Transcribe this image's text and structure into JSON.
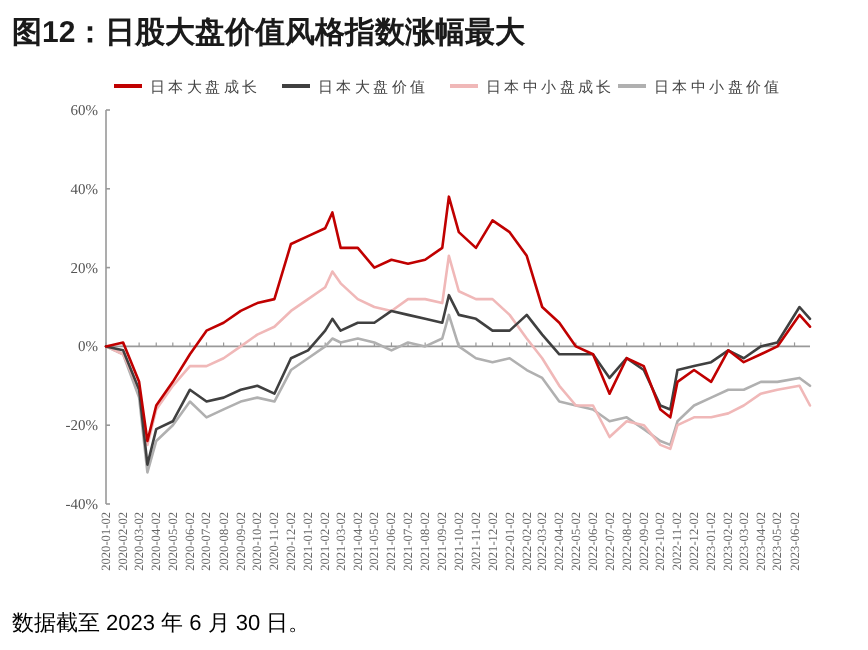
{
  "chart_data": {
    "type": "line",
    "title": "图12：日股大盘价值风格指数涨幅最大",
    "annotations": [
      "数据截至 2023 年 6 月 30 日。"
    ],
    "legend": "top",
    "x": [
      "2020-01-02",
      "2020-02-02",
      "2020-03-02",
      "2020-03-17",
      "2020-04-02",
      "2020-05-02",
      "2020-06-02",
      "2020-07-02",
      "2020-08-02",
      "2020-09-02",
      "2020-10-02",
      "2020-11-02",
      "2020-12-02",
      "2021-01-02",
      "2021-02-02",
      "2021-02-15",
      "2021-03-02",
      "2021-04-02",
      "2021-05-02",
      "2021-06-02",
      "2021-07-02",
      "2021-08-02",
      "2021-09-02",
      "2021-09-14",
      "2021-10-02",
      "2021-11-02",
      "2021-12-02",
      "2022-01-02",
      "2022-02-02",
      "2022-03-02",
      "2022-04-02",
      "2022-05-02",
      "2022-06-02",
      "2022-07-02",
      "2022-08-02",
      "2022-09-02",
      "2022-10-02",
      "2022-10-20",
      "2022-11-02",
      "2022-12-02",
      "2023-01-02",
      "2023-02-02",
      "2023-03-02",
      "2023-04-02",
      "2023-05-02",
      "2023-06-11",
      "2023-06-30"
    ],
    "series": [
      {
        "name": "日本大盘成长",
        "color": "#c00000",
        "values": [
          0,
          1,
          -9,
          -24,
          -15,
          -9,
          -2,
          4,
          6,
          9,
          11,
          12,
          26,
          28,
          30,
          34,
          25,
          25,
          20,
          22,
          21,
          22,
          25,
          38,
          29,
          25,
          32,
          29,
          23,
          10,
          6,
          0,
          -2,
          -12,
          -3,
          -5,
          -16,
          -18,
          -9,
          -6,
          -9,
          -1,
          -4,
          -2,
          0,
          8,
          5
        ]
      },
      {
        "name": "日本大盘价值",
        "color": "#404040",
        "values": [
          0,
          -1,
          -11,
          -30,
          -21,
          -19,
          -11,
          -14,
          -13,
          -11,
          -10,
          -12,
          -3,
          -1,
          4,
          7,
          4,
          6,
          6,
          9,
          8,
          7,
          6,
          13,
          8,
          7,
          4,
          4,
          8,
          3,
          -2,
          -2,
          -2,
          -8,
          -3,
          -6,
          -15,
          -16,
          -6,
          -5,
          -4,
          -1,
          -3,
          0,
          1,
          10,
          7
        ]
      },
      {
        "name": "日本中小盘成长",
        "color": "#f0b8b8",
        "values": [
          0,
          -2,
          -11,
          -25,
          -16,
          -10,
          -5,
          -5,
          -3,
          0,
          3,
          5,
          9,
          12,
          15,
          19,
          16,
          12,
          10,
          9,
          12,
          12,
          11,
          23,
          14,
          12,
          12,
          8,
          2,
          -3,
          -10,
          -15,
          -15,
          -23,
          -19,
          -20,
          -25,
          -26,
          -20,
          -18,
          -18,
          -17,
          -15,
          -12,
          -11,
          -10,
          -15
        ]
      },
      {
        "name": "日本中小盘价值",
        "color": "#b0b0b0",
        "values": [
          0,
          -2,
          -13,
          -32,
          -24,
          -20,
          -14,
          -18,
          -16,
          -14,
          -13,
          -14,
          -6,
          -3,
          0,
          2,
          1,
          2,
          1,
          -1,
          1,
          0,
          2,
          8,
          0,
          -3,
          -4,
          -3,
          -6,
          -8,
          -14,
          -15,
          -16,
          -19,
          -18,
          -21,
          -24,
          -25,
          -19,
          -15,
          -13,
          -11,
          -11,
          -9,
          -9,
          -8,
          -10
        ]
      }
    ],
    "xlim": [
      "2020-01-02",
      "2023-06-30"
    ],
    "xticks": [
      "2020-01-02",
      "2020-02-02",
      "2020-03-02",
      "2020-04-02",
      "2020-05-02",
      "2020-06-02",
      "2020-07-02",
      "2020-08-02",
      "2020-09-02",
      "2020-10-02",
      "2020-11-02",
      "2020-12-02",
      "2021-01-02",
      "2021-02-02",
      "2021-03-02",
      "2021-04-02",
      "2021-05-02",
      "2021-06-02",
      "2021-07-02",
      "2021-08-02",
      "2021-09-02",
      "2021-10-02",
      "2021-11-02",
      "2021-12-02",
      "2022-01-02",
      "2022-02-02",
      "2022-03-02",
      "2022-04-02",
      "2022-05-02",
      "2022-06-02",
      "2022-07-02",
      "2022-08-02",
      "2022-09-02",
      "2022-10-02",
      "2022-11-02",
      "2022-12-02",
      "2023-01-02",
      "2023-02-02",
      "2023-03-02",
      "2023-04-02",
      "2023-05-02",
      "2023-06-02"
    ],
    "ylim": [
      -40,
      60
    ],
    "yticks": [
      {
        "value": -40,
        "label": "-40%"
      },
      {
        "value": -20,
        "label": "-20%"
      },
      {
        "value": 0,
        "label": "0%"
      },
      {
        "value": 20,
        "label": "20%"
      },
      {
        "value": 40,
        "label": "40%"
      },
      {
        "value": 60,
        "label": "60%"
      }
    ],
    "line_style": "solid",
    "marker": "none"
  }
}
